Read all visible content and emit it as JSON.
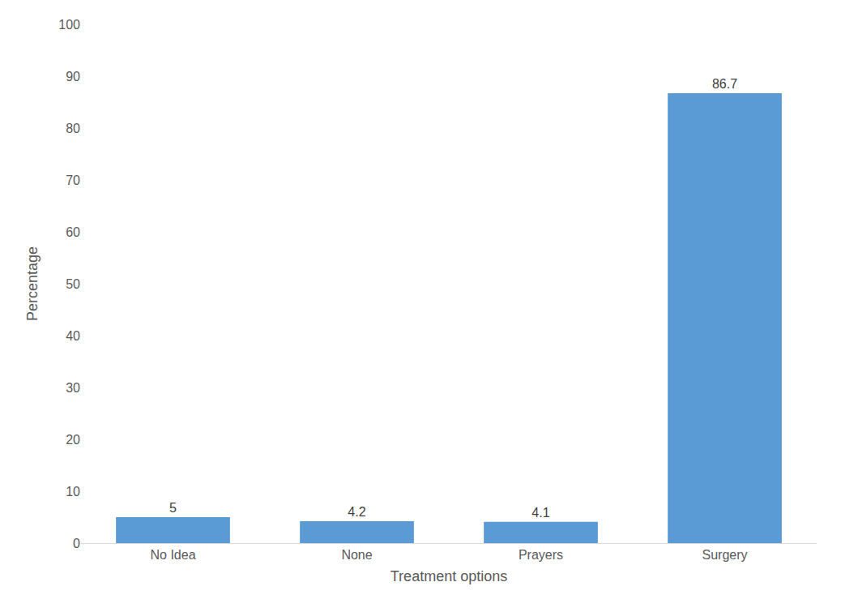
{
  "chart_data": {
    "type": "bar",
    "x_label": "Treatment options",
    "y_label": "Percentage",
    "categories": [
      "No Idea",
      "None",
      "Prayers",
      "Surgery"
    ],
    "values": [
      5,
      4.2,
      4.1,
      86.7
    ],
    "color": "#5b9bd5",
    "ylim": [
      0,
      100
    ],
    "yticks": [
      0,
      10,
      20,
      30,
      40,
      50,
      60,
      70,
      80,
      90,
      100
    ],
    "grid": false,
    "data_labels": true
  }
}
